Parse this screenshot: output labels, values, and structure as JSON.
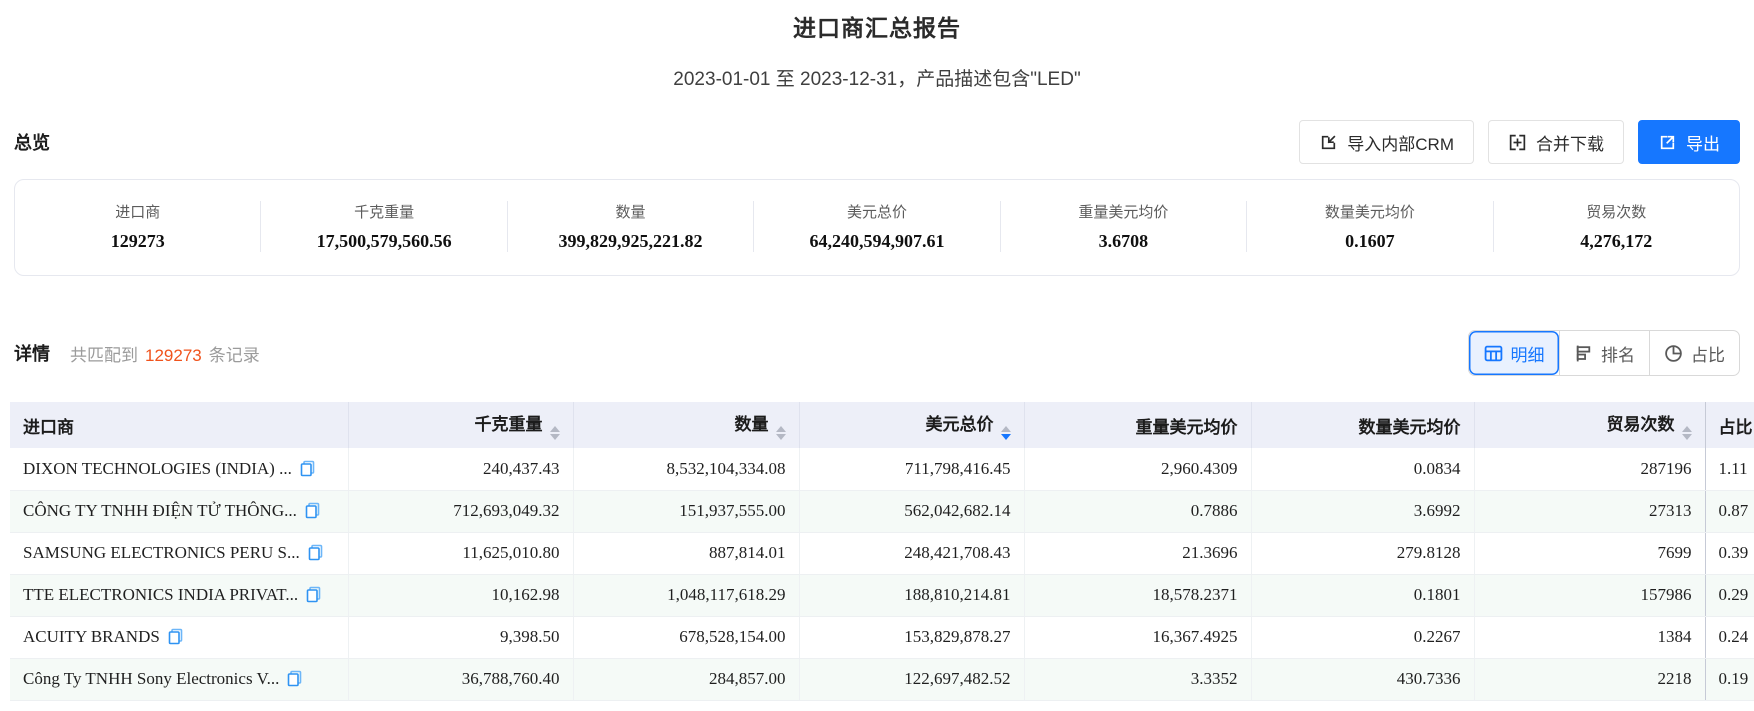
{
  "page": {
    "title": "进口商汇总报告",
    "subtitle": "2023-01-01 至 2023-12-31，产品描述包含\"LED\""
  },
  "colors": {
    "accent_blue": "#1677ff",
    "highlight_orange": "#f0531c",
    "header_bg": "#edeff8",
    "stripe_bg": "#f5faf7"
  },
  "overview": {
    "section_title": "总览",
    "buttons": {
      "import_crm": "导入内部CRM",
      "merge_download": "合并下载",
      "export": "导出"
    },
    "stats": [
      {
        "label": "进口商",
        "value": "129273"
      },
      {
        "label": "千克重量",
        "value": "17,500,579,560.56"
      },
      {
        "label": "数量",
        "value": "399,829,925,221.82"
      },
      {
        "label": "美元总价",
        "value": "64,240,594,907.61"
      },
      {
        "label": "重量美元均价",
        "value": "3.6708"
      },
      {
        "label": "数量美元均价",
        "value": "0.1607"
      },
      {
        "label": "贸易次数",
        "value": "4,276,172"
      }
    ]
  },
  "details": {
    "section_title": "详情",
    "match_prefix": "共匹配到",
    "match_count": "129273",
    "match_suffix": "条记录",
    "view_tabs": [
      {
        "label": "明细",
        "icon": "table-icon",
        "active": true
      },
      {
        "label": "排名",
        "icon": "ranking-icon",
        "active": false
      },
      {
        "label": "占比",
        "icon": "pie-icon",
        "active": false
      }
    ]
  },
  "table": {
    "columns": [
      {
        "key": "importer",
        "label": "进口商",
        "sortable": false
      },
      {
        "key": "kg",
        "label": "千克重量",
        "sortable": true
      },
      {
        "key": "qty",
        "label": "数量",
        "sortable": true
      },
      {
        "key": "usd",
        "label": "美元总价",
        "sortable": true,
        "sorted": "desc"
      },
      {
        "key": "usd_per_kg",
        "label": "重量美元均价",
        "sortable": false
      },
      {
        "key": "usd_per_qty",
        "label": "数量美元均价",
        "sortable": false
      },
      {
        "key": "trades",
        "label": "贸易次数",
        "sortable": true
      },
      {
        "key": "share",
        "label": "占比",
        "sortable": false
      }
    ],
    "rows": [
      {
        "importer": "DIXON TECHNOLOGIES (INDIA) ...",
        "kg": "240,437.43",
        "qty": "8,532,104,334.08",
        "usd": "711,798,416.45",
        "usd_per_kg": "2,960.4309",
        "usd_per_qty": "0.0834",
        "trades": "287196",
        "share": "1.11"
      },
      {
        "importer": "CÔNG TY TNHH ĐIỆN TỬ THÔNG...",
        "kg": "712,693,049.32",
        "qty": "151,937,555.00",
        "usd": "562,042,682.14",
        "usd_per_kg": "0.7886",
        "usd_per_qty": "3.6992",
        "trades": "27313",
        "share": "0.87"
      },
      {
        "importer": "SAMSUNG ELECTRONICS PERU S...",
        "kg": "11,625,010.80",
        "qty": "887,814.01",
        "usd": "248,421,708.43",
        "usd_per_kg": "21.3696",
        "usd_per_qty": "279.8128",
        "trades": "7699",
        "share": "0.39"
      },
      {
        "importer": "TTE ELECTRONICS INDIA PRIVAT...",
        "kg": "10,162.98",
        "qty": "1,048,117,618.29",
        "usd": "188,810,214.81",
        "usd_per_kg": "18,578.2371",
        "usd_per_qty": "0.1801",
        "trades": "157986",
        "share": "0.29"
      },
      {
        "importer": "ACUITY BRANDS",
        "kg": "9,398.50",
        "qty": "678,528,154.00",
        "usd": "153,829,878.27",
        "usd_per_kg": "16,367.4925",
        "usd_per_qty": "0.2267",
        "trades": "1384",
        "share": "0.24"
      },
      {
        "importer": "Công Ty TNHH Sony Electronics V...",
        "kg": "36,788,760.40",
        "qty": "284,857.00",
        "usd": "122,697,482.52",
        "usd_per_kg": "3.3352",
        "usd_per_qty": "430.7336",
        "trades": "2218",
        "share": "0.19"
      }
    ]
  }
}
